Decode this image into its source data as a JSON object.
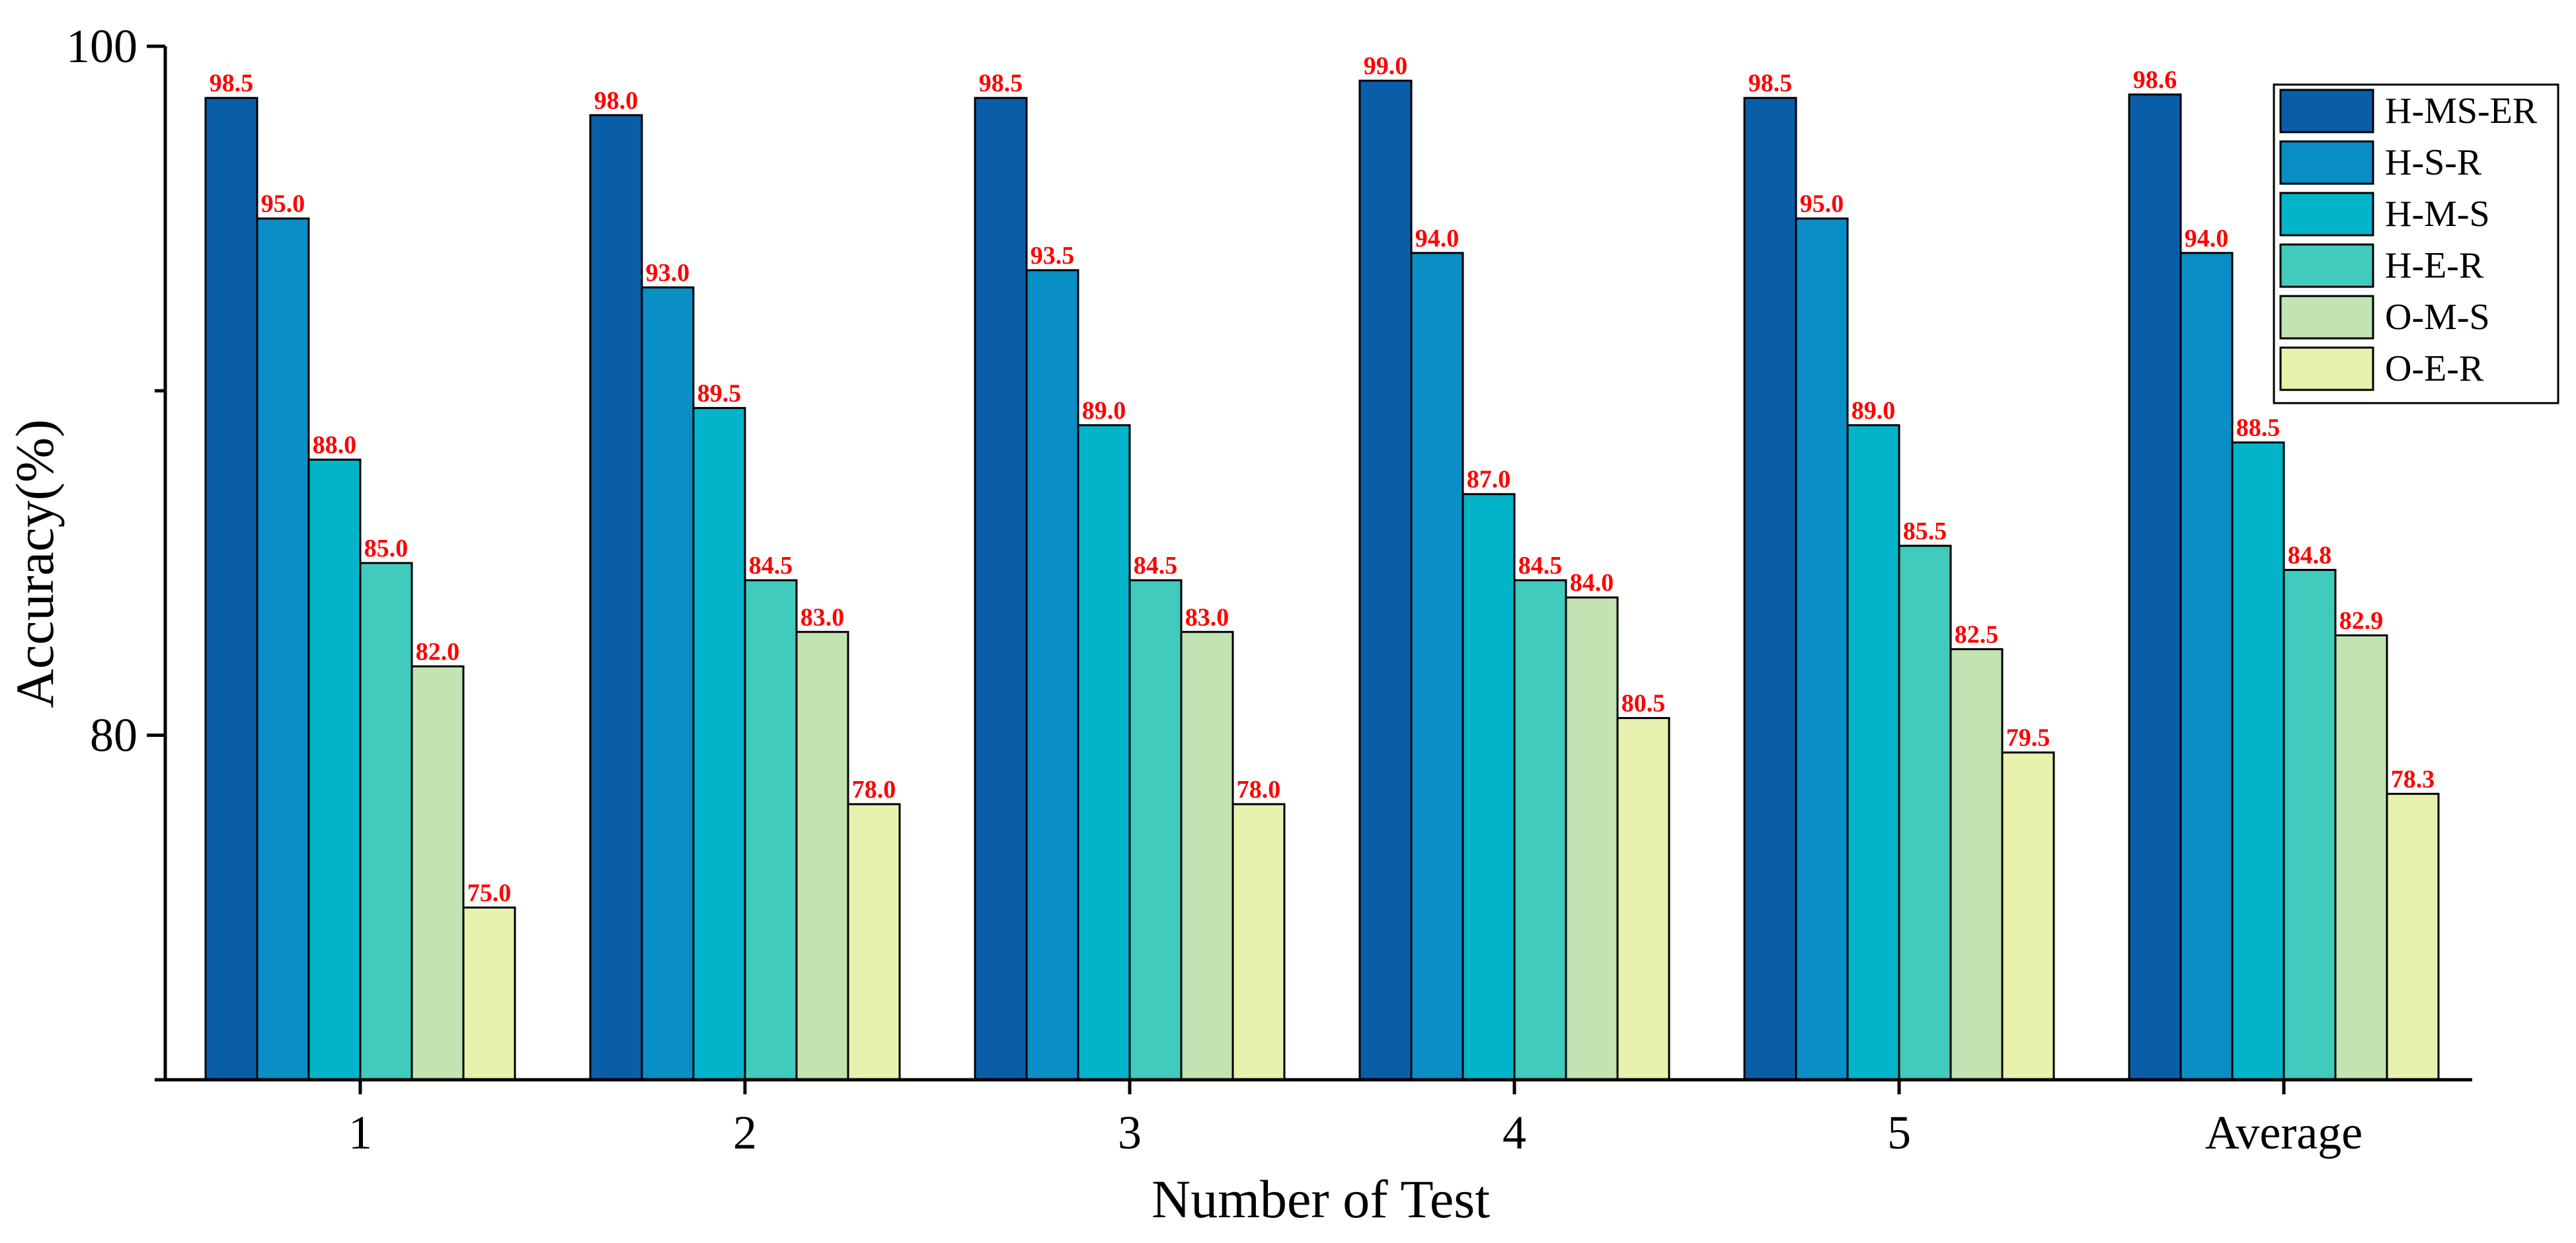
{
  "chart_data": {
    "type": "bar",
    "title": "",
    "xlabel": "Number of Test",
    "ylabel": "Accuracy(%)",
    "ylim": [
      70,
      100
    ],
    "yticks": [
      {
        "value": 100,
        "label": "100"
      },
      {
        "value": 80,
        "label": "80"
      }
    ],
    "minor_yticks": [
      90,
      70
    ],
    "categories": [
      "1",
      "2",
      "3",
      "4",
      "5",
      "Average"
    ],
    "series": [
      {
        "name": "H-MS-ER",
        "color": "#0A5EA8",
        "values": [
          98.5,
          98.0,
          98.5,
          99.0,
          98.5,
          98.6
        ],
        "labels": [
          "98.5",
          "98.0",
          "98.5",
          "99.0",
          "98.5",
          "98.6"
        ]
      },
      {
        "name": "H-S-R",
        "color": "#0A8EC6",
        "values": [
          95.0,
          93.0,
          93.5,
          94.0,
          95.0,
          94.0
        ],
        "labels": [
          "95.0",
          "93.0",
          "93.5",
          "94.0",
          "95.0",
          "94.0"
        ]
      },
      {
        "name": "H-M-S",
        "color": "#01B4C9",
        "values": [
          88.0,
          89.5,
          89.0,
          87.0,
          89.0,
          88.5
        ],
        "labels": [
          "88.0",
          "89.5",
          "89.0",
          "87.0",
          "89.0",
          "88.5"
        ]
      },
      {
        "name": "H-E-R",
        "color": "#40CBBC",
        "values": [
          85.0,
          84.5,
          84.5,
          84.5,
          85.5,
          84.8
        ],
        "labels": [
          "85.0",
          "84.5",
          "84.5",
          "84.5",
          "85.5",
          "84.8"
        ]
      },
      {
        "name": "O-M-S",
        "color": "#C2E3B2",
        "values": [
          82.0,
          83.0,
          83.0,
          84.0,
          82.5,
          82.9
        ],
        "labels": [
          "82.0",
          "83.0",
          "83.0",
          "84.0",
          "82.5",
          "82.9"
        ]
      },
      {
        "name": "O-E-R",
        "color": "#E8F1AE",
        "values": [
          75.0,
          78.0,
          78.0,
          80.5,
          79.5,
          78.3
        ],
        "labels": [
          "75.0",
          "78.0",
          "78.0",
          "80.5",
          "79.5",
          "78.3"
        ]
      }
    ],
    "value_label_color": "#FF0000",
    "legend_position": "top-right",
    "grid": false
  }
}
